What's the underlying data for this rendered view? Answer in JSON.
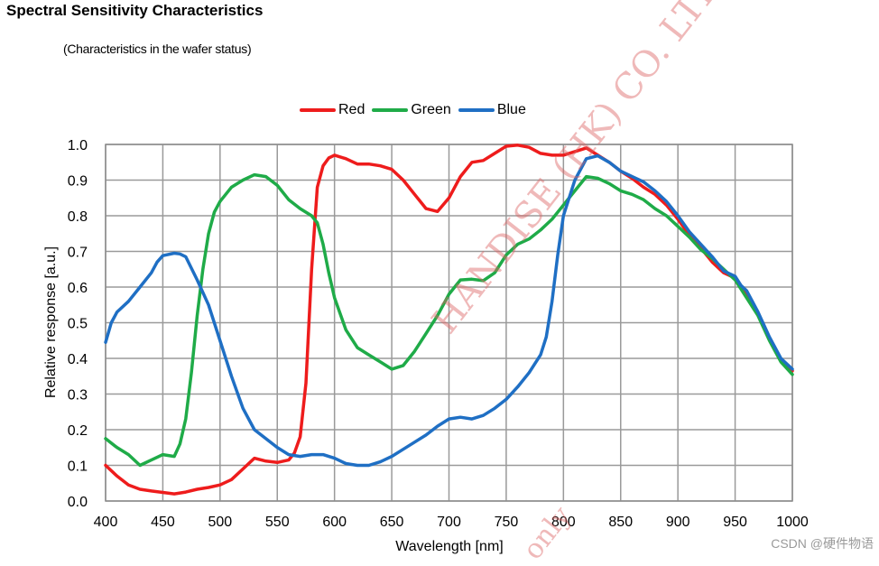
{
  "title": "Spectral Sensitivity Characteristics",
  "subtitle": "(Characteristics in the wafer status)",
  "footer_mark": "CSDN @硬件物语",
  "watermark": {
    "line1": "HANDISE (HK) CO. LTD.",
    "line2": "only"
  },
  "chart_data": {
    "type": "line",
    "xlabel": "Wavelength [nm]",
    "ylabel": "Relative response [a.u.]",
    "xlim": [
      400,
      1000
    ],
    "ylim": [
      0.0,
      1.0
    ],
    "x_ticks": [
      "400",
      "450",
      "500",
      "550",
      "600",
      "650",
      "700",
      "750",
      "800",
      "850",
      "900",
      "950",
      "1000"
    ],
    "y_ticks": [
      "0.0",
      "0.1",
      "0.2",
      "0.3",
      "0.4",
      "0.5",
      "0.6",
      "0.7",
      "0.8",
      "0.9",
      "1.0"
    ],
    "grid": true,
    "legend_position": "top-center",
    "series": [
      {
        "name": "Red",
        "color": "#ee1c1c",
        "points": [
          [
            400,
            0.1
          ],
          [
            410,
            0.07
          ],
          [
            420,
            0.045
          ],
          [
            430,
            0.033
          ],
          [
            440,
            0.028
          ],
          [
            450,
            0.024
          ],
          [
            460,
            0.02
          ],
          [
            470,
            0.025
          ],
          [
            480,
            0.033
          ],
          [
            490,
            0.038
          ],
          [
            500,
            0.045
          ],
          [
            510,
            0.06
          ],
          [
            520,
            0.09
          ],
          [
            530,
            0.12
          ],
          [
            540,
            0.112
          ],
          [
            550,
            0.108
          ],
          [
            560,
            0.115
          ],
          [
            565,
            0.135
          ],
          [
            570,
            0.18
          ],
          [
            575,
            0.33
          ],
          [
            580,
            0.65
          ],
          [
            585,
            0.88
          ],
          [
            590,
            0.94
          ],
          [
            595,
            0.962
          ],
          [
            600,
            0.97
          ],
          [
            610,
            0.96
          ],
          [
            620,
            0.945
          ],
          [
            630,
            0.945
          ],
          [
            640,
            0.94
          ],
          [
            650,
            0.93
          ],
          [
            660,
            0.9
          ],
          [
            670,
            0.86
          ],
          [
            680,
            0.82
          ],
          [
            690,
            0.812
          ],
          [
            700,
            0.85
          ],
          [
            710,
            0.91
          ],
          [
            720,
            0.95
          ],
          [
            730,
            0.955
          ],
          [
            740,
            0.975
          ],
          [
            750,
            0.995
          ],
          [
            760,
            0.998
          ],
          [
            770,
            0.992
          ],
          [
            780,
            0.975
          ],
          [
            790,
            0.97
          ],
          [
            800,
            0.97
          ],
          [
            810,
            0.98
          ],
          [
            820,
            0.99
          ],
          [
            830,
            0.97
          ],
          [
            840,
            0.95
          ],
          [
            850,
            0.925
          ],
          [
            860,
            0.905
          ],
          [
            870,
            0.88
          ],
          [
            880,
            0.86
          ],
          [
            890,
            0.83
          ],
          [
            900,
            0.79
          ],
          [
            910,
            0.745
          ],
          [
            920,
            0.71
          ],
          [
            930,
            0.67
          ],
          [
            940,
            0.64
          ],
          [
            950,
            0.625
          ],
          [
            955,
            0.6
          ],
          [
            960,
            0.58
          ],
          [
            970,
            0.525
          ],
          [
            980,
            0.455
          ],
          [
            990,
            0.395
          ],
          [
            1000,
            0.365
          ]
        ]
      },
      {
        "name": "Green",
        "color": "#1fab48",
        "points": [
          [
            400,
            0.175
          ],
          [
            410,
            0.15
          ],
          [
            420,
            0.13
          ],
          [
            430,
            0.1
          ],
          [
            440,
            0.115
          ],
          [
            450,
            0.13
          ],
          [
            460,
            0.125
          ],
          [
            465,
            0.16
          ],
          [
            470,
            0.23
          ],
          [
            475,
            0.36
          ],
          [
            480,
            0.52
          ],
          [
            485,
            0.65
          ],
          [
            490,
            0.75
          ],
          [
            495,
            0.81
          ],
          [
            500,
            0.84
          ],
          [
            510,
            0.88
          ],
          [
            520,
            0.9
          ],
          [
            530,
            0.915
          ],
          [
            540,
            0.91
          ],
          [
            550,
            0.885
          ],
          [
            560,
            0.845
          ],
          [
            570,
            0.82
          ],
          [
            580,
            0.8
          ],
          [
            585,
            0.78
          ],
          [
            590,
            0.72
          ],
          [
            595,
            0.64
          ],
          [
            600,
            0.57
          ],
          [
            610,
            0.48
          ],
          [
            620,
            0.43
          ],
          [
            630,
            0.41
          ],
          [
            640,
            0.39
          ],
          [
            650,
            0.37
          ],
          [
            660,
            0.38
          ],
          [
            670,
            0.42
          ],
          [
            680,
            0.47
          ],
          [
            690,
            0.52
          ],
          [
            700,
            0.58
          ],
          [
            710,
            0.62
          ],
          [
            720,
            0.622
          ],
          [
            730,
            0.618
          ],
          [
            740,
            0.64
          ],
          [
            750,
            0.69
          ],
          [
            760,
            0.72
          ],
          [
            770,
            0.735
          ],
          [
            780,
            0.76
          ],
          [
            790,
            0.79
          ],
          [
            800,
            0.83
          ],
          [
            810,
            0.87
          ],
          [
            820,
            0.91
          ],
          [
            830,
            0.905
          ],
          [
            840,
            0.89
          ],
          [
            850,
            0.87
          ],
          [
            860,
            0.86
          ],
          [
            870,
            0.845
          ],
          [
            880,
            0.82
          ],
          [
            890,
            0.8
          ],
          [
            900,
            0.77
          ],
          [
            910,
            0.74
          ],
          [
            920,
            0.705
          ],
          [
            930,
            0.68
          ],
          [
            940,
            0.65
          ],
          [
            950,
            0.62
          ],
          [
            960,
            0.57
          ],
          [
            970,
            0.52
          ],
          [
            980,
            0.45
          ],
          [
            990,
            0.39
          ],
          [
            1000,
            0.355
          ]
        ]
      },
      {
        "name": "Blue",
        "color": "#1f6fc4",
        "points": [
          [
            400,
            0.445
          ],
          [
            405,
            0.5
          ],
          [
            410,
            0.53
          ],
          [
            420,
            0.56
          ],
          [
            430,
            0.6
          ],
          [
            440,
            0.64
          ],
          [
            445,
            0.67
          ],
          [
            450,
            0.688
          ],
          [
            460,
            0.695
          ],
          [
            465,
            0.693
          ],
          [
            470,
            0.685
          ],
          [
            480,
            0.62
          ],
          [
            490,
            0.55
          ],
          [
            500,
            0.45
          ],
          [
            510,
            0.35
          ],
          [
            520,
            0.26
          ],
          [
            530,
            0.2
          ],
          [
            540,
            0.175
          ],
          [
            550,
            0.15
          ],
          [
            560,
            0.13
          ],
          [
            570,
            0.125
          ],
          [
            580,
            0.13
          ],
          [
            590,
            0.13
          ],
          [
            600,
            0.12
          ],
          [
            610,
            0.105
          ],
          [
            620,
            0.1
          ],
          [
            630,
            0.1
          ],
          [
            640,
            0.11
          ],
          [
            650,
            0.125
          ],
          [
            660,
            0.145
          ],
          [
            670,
            0.165
          ],
          [
            680,
            0.185
          ],
          [
            690,
            0.21
          ],
          [
            700,
            0.23
          ],
          [
            710,
            0.235
          ],
          [
            720,
            0.23
          ],
          [
            730,
            0.24
          ],
          [
            740,
            0.26
          ],
          [
            750,
            0.285
          ],
          [
            760,
            0.32
          ],
          [
            770,
            0.36
          ],
          [
            780,
            0.41
          ],
          [
            785,
            0.46
          ],
          [
            790,
            0.56
          ],
          [
            795,
            0.69
          ],
          [
            800,
            0.8
          ],
          [
            810,
            0.9
          ],
          [
            820,
            0.96
          ],
          [
            830,
            0.968
          ],
          [
            840,
            0.95
          ],
          [
            850,
            0.925
          ],
          [
            860,
            0.91
          ],
          [
            870,
            0.895
          ],
          [
            880,
            0.87
          ],
          [
            890,
            0.84
          ],
          [
            900,
            0.8
          ],
          [
            910,
            0.755
          ],
          [
            920,
            0.72
          ],
          [
            930,
            0.685
          ],
          [
            940,
            0.645
          ],
          [
            950,
            0.63
          ],
          [
            955,
            0.605
          ],
          [
            960,
            0.59
          ],
          [
            970,
            0.53
          ],
          [
            980,
            0.46
          ],
          [
            990,
            0.4
          ],
          [
            1000,
            0.37
          ]
        ]
      }
    ]
  }
}
